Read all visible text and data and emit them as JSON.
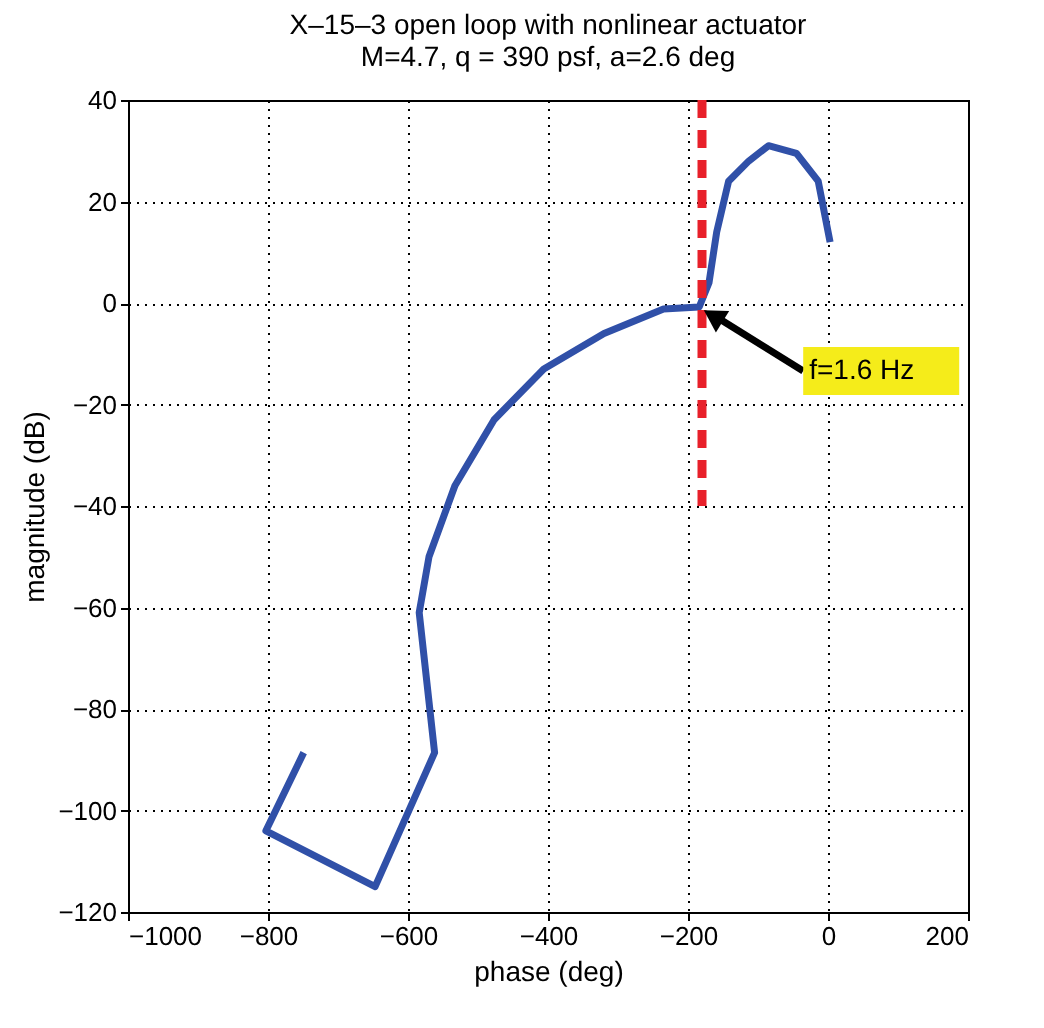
{
  "chart_data": {
    "type": "line",
    "title": "X–15–3 open loop with nonlinear actuator",
    "subtitle": "M=4.7, q = 390 psf, a=2.6 deg",
    "xlabel": "phase (deg)",
    "ylabel": "magnitude (dB)",
    "xlim": [
      -1000,
      200
    ],
    "xticks": [
      -1000,
      -800,
      -600,
      -400,
      -200,
      0,
      200
    ],
    "ylim": [
      -120,
      40
    ],
    "yticks": [
      -120,
      -100,
      -80,
      -60,
      -40,
      -20,
      0,
      20,
      40
    ],
    "grid": true,
    "series": [
      {
        "color": "#3050a8",
        "line_style": "solid",
        "x": [
          -749,
          -803,
          -647,
          -562,
          -584,
          -570,
          -533,
          -477,
          -406,
          -320,
          -235,
          -184,
          -170,
          -159,
          -142,
          -113,
          -85,
          -45,
          -14,
          3
        ],
        "values": [
          -88.6,
          -104,
          -115,
          -88.6,
          -61,
          -50,
          -36,
          -23,
          -13,
          -6,
          -1.2,
          -0.8,
          4,
          14,
          24,
          28,
          31,
          29.5,
          24,
          12
        ]
      },
      {
        "color": "#e8202a",
        "line_style": "dashed",
        "x": [
          -180,
          -180
        ],
        "values": [
          40,
          -40
        ]
      }
    ],
    "annotations": [
      {
        "text": "f=1.6 Hz",
        "x": -184,
        "y": -0.8
      }
    ]
  }
}
